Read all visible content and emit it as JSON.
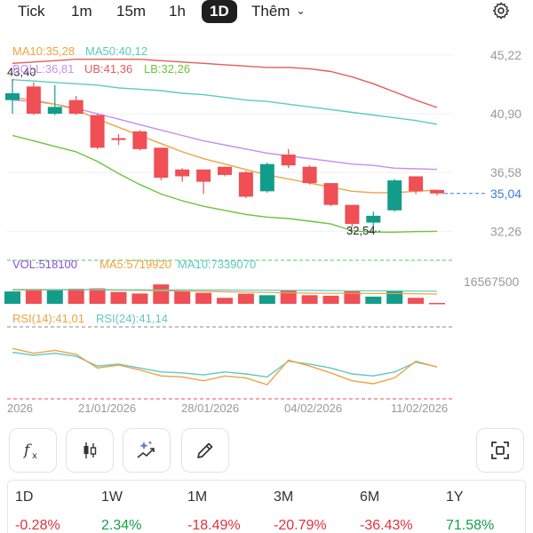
{
  "tabs": [
    {
      "label": "Tick",
      "active": false
    },
    {
      "label": "1m",
      "active": false
    },
    {
      "label": "15m",
      "active": false
    },
    {
      "label": "1h",
      "active": false
    },
    {
      "label": "1D",
      "active": true
    },
    {
      "label": "Thêm",
      "active": false,
      "dropdown": true
    }
  ],
  "settings_icon": "gear-icon",
  "main_legend": [
    {
      "text": "MA10:35,28",
      "color": "#f0a340"
    },
    {
      "text": "MA50:40,12",
      "color": "#5fc9c0"
    },
    {
      "text": "BOLL:36,81",
      "color": "#c48ef0"
    },
    {
      "text": "UB:41,36",
      "color": "#e95a5a"
    },
    {
      "text": "LB:32,26",
      "color": "#6cc43e"
    }
  ],
  "price_axis": {
    "ticks": [
      "45,22",
      "40,90",
      "36,58",
      "32,26"
    ],
    "tick_values": [
      45.22,
      40.9,
      36.58,
      32.26
    ],
    "current_price": "35,04",
    "current_value": 35.04,
    "annotations": {
      "high": "43,40",
      "high_value": 43.4,
      "low": "32,54",
      "low_value": 32.54
    }
  },
  "volume_legend": [
    {
      "text": "VOL:518100",
      "color": "#8a4fd6"
    },
    {
      "text": "MA5:5719920",
      "color": "#f0a340"
    },
    {
      "text": "MA10:7339070",
      "color": "#5fc9c0"
    }
  ],
  "volume_axis_label": "16567500",
  "rsi_legend": [
    {
      "text": "RSI(14):41,01",
      "color": "#f0a340"
    },
    {
      "text": "RSI(24):41,14",
      "color": "#5fc9c0"
    }
  ],
  "date_labels": [
    "2026",
    "21/01/2026",
    "28/01/2026",
    "04/02/2026",
    "11/02/2026"
  ],
  "colors": {
    "up": "#139c8a",
    "down": "#ef4f55",
    "current": "#3a7fd8",
    "volume_limit": "#3fd25a",
    "rsi_limit": "#ef4f55"
  },
  "tools": [
    {
      "name": "indicator-fx-icon"
    },
    {
      "name": "candle-type-icon"
    },
    {
      "name": "sparkle-chart-icon"
    },
    {
      "name": "draw-pencil-icon"
    },
    {
      "name": "screenshot-icon"
    }
  ],
  "performance": [
    {
      "label": "1D",
      "value": "-0.28%",
      "dir": "neg"
    },
    {
      "label": "1W",
      "value": "2.34%",
      "dir": "pos"
    },
    {
      "label": "1M",
      "value": "-18.49%",
      "dir": "neg"
    },
    {
      "label": "3M",
      "value": "-20.79%",
      "dir": "neg"
    },
    {
      "label": "6M",
      "value": "-36.43%",
      "dir": "neg"
    },
    {
      "label": "1Y",
      "value": "71.58%",
      "dir": "pos"
    }
  ],
  "chart_data": {
    "type": "candlestick",
    "y_range": [
      31.5,
      45.6
    ],
    "candles": [
      {
        "o": 41.9,
        "h": 43.4,
        "l": 40.9,
        "c": 42.4
      },
      {
        "o": 42.9,
        "h": 43.2,
        "l": 40.8,
        "c": 40.9
      },
      {
        "o": 40.9,
        "h": 43.0,
        "l": 40.8,
        "c": 41.4
      },
      {
        "o": 41.9,
        "h": 42.2,
        "l": 40.8,
        "c": 40.9
      },
      {
        "o": 40.8,
        "h": 40.9,
        "l": 38.3,
        "c": 38.4
      },
      {
        "o": 39.1,
        "h": 39.4,
        "l": 38.6,
        "c": 39.0
      },
      {
        "o": 39.6,
        "h": 39.7,
        "l": 38.2,
        "c": 38.3
      },
      {
        "o": 38.4,
        "h": 38.4,
        "l": 36.0,
        "c": 36.2
      },
      {
        "o": 36.8,
        "h": 36.9,
        "l": 35.9,
        "c": 36.3
      },
      {
        "o": 36.8,
        "h": 36.8,
        "l": 35.0,
        "c": 35.9
      },
      {
        "o": 37.0,
        "h": 37.0,
        "l": 36.3,
        "c": 36.4
      },
      {
        "o": 36.6,
        "h": 36.7,
        "l": 34.7,
        "c": 34.8
      },
      {
        "o": 35.2,
        "h": 37.3,
        "l": 35.1,
        "c": 37.2
      },
      {
        "o": 37.9,
        "h": 38.3,
        "l": 36.9,
        "c": 37.1
      },
      {
        "o": 37.0,
        "h": 37.1,
        "l": 35.7,
        "c": 35.8
      },
      {
        "o": 35.8,
        "h": 35.8,
        "l": 34.1,
        "c": 34.2
      },
      {
        "o": 34.2,
        "h": 34.2,
        "l": 32.6,
        "c": 32.8
      },
      {
        "o": 32.9,
        "h": 33.7,
        "l": 32.5,
        "c": 33.4
      },
      {
        "o": 33.8,
        "h": 36.1,
        "l": 33.7,
        "c": 36.0
      },
      {
        "o": 36.3,
        "h": 36.3,
        "l": 35.0,
        "c": 35.2
      },
      {
        "o": 35.3,
        "h": 35.3,
        "l": 34.9,
        "c": 35.04
      }
    ],
    "ma10": [
      42.1,
      41.9,
      41.6,
      41.2,
      40.5,
      39.9,
      39.3,
      38.7,
      38.1,
      37.6,
      37.2,
      36.8,
      36.4,
      36.1,
      35.8,
      35.5,
      35.2,
      35.1,
      35.1,
      35.2,
      35.28
    ],
    "ma50": [
      43.4,
      43.3,
      43.2,
      43.1,
      43.0,
      42.8,
      42.7,
      42.6,
      42.4,
      42.3,
      42.1,
      41.9,
      41.8,
      41.6,
      41.4,
      41.2,
      41.0,
      40.8,
      40.6,
      40.4,
      40.12
    ],
    "boll": [
      41.9,
      41.8,
      41.6,
      41.3,
      40.9,
      40.5,
      40.1,
      39.7,
      39.3,
      38.9,
      38.6,
      38.3,
      38.0,
      37.8,
      37.6,
      37.4,
      37.2,
      37.1,
      36.9,
      36.85,
      36.81
    ],
    "ub": [
      44.6,
      44.7,
      44.8,
      44.9,
      44.9,
      44.9,
      44.9,
      44.8,
      44.7,
      44.6,
      44.5,
      44.4,
      44.3,
      44.3,
      44.2,
      44.0,
      43.6,
      43.1,
      42.5,
      41.9,
      41.36
    ],
    "lb": [
      39.3,
      38.9,
      38.5,
      38.1,
      37.4,
      36.5,
      35.7,
      35.0,
      34.5,
      34.1,
      33.8,
      33.5,
      33.3,
      33.2,
      33.0,
      32.8,
      32.3,
      32.2,
      32.2,
      32.24,
      32.26
    ],
    "volume": [
      7.2,
      8.6,
      8.0,
      8.8,
      9.0,
      6.9,
      6.0,
      11.3,
      7.4,
      6.4,
      3.5,
      5.9,
      5.0,
      7.9,
      5.0,
      4.7,
      7.3,
      4.2,
      7.3,
      3.5,
      0.52
    ],
    "vol_ma5": [
      7.9,
      8.0,
      8.1,
      8.2,
      8.1,
      7.9,
      7.8,
      7.6,
      7.4,
      7.2,
      7.0,
      6.8,
      6.6,
      6.4,
      6.2,
      6.1,
      6.1,
      6.0,
      6.0,
      5.9,
      5.72
    ],
    "vol_ma10": [
      8.4,
      8.4,
      8.4,
      8.3,
      8.3,
      8.2,
      8.2,
      8.1,
      8.1,
      8.0,
      8.0,
      7.9,
      7.9,
      7.8,
      7.8,
      7.7,
      7.6,
      7.6,
      7.5,
      7.4,
      7.34
    ],
    "vol_max": 16.5675,
    "rsi14": [
      60,
      55,
      58,
      54,
      40,
      43,
      38,
      32,
      31,
      27,
      32,
      30,
      23,
      48,
      42,
      35,
      27,
      24,
      30,
      47,
      41.01
    ],
    "rsi24": [
      56,
      53,
      55,
      52,
      42,
      44,
      40,
      36,
      35,
      33,
      36,
      34,
      31,
      47,
      44,
      40,
      34,
      32,
      36,
      46,
      41.14
    ],
    "rsi_range": [
      15,
      80
    ]
  }
}
